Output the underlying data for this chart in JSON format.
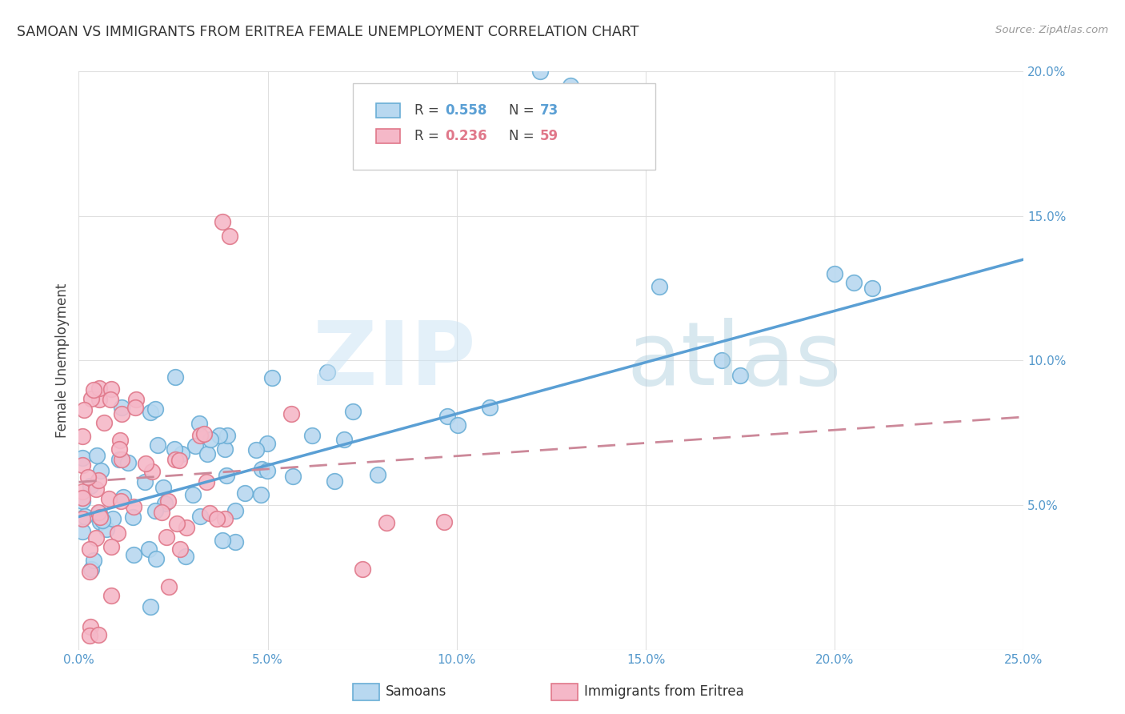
{
  "title": "SAMOAN VS IMMIGRANTS FROM ERITREA FEMALE UNEMPLOYMENT CORRELATION CHART",
  "source": "Source: ZipAtlas.com",
  "ylabel": "Female Unemployment",
  "x_min": 0.0,
  "x_max": 0.25,
  "y_min": 0.0,
  "y_max": 0.2,
  "x_ticks": [
    0.0,
    0.05,
    0.1,
    0.15,
    0.2,
    0.25
  ],
  "y_ticks": [
    0.0,
    0.05,
    0.1,
    0.15,
    0.2
  ],
  "color_samoan_fill": "#b8d8f0",
  "color_samoan_edge": "#6aaed6",
  "color_eritrea_fill": "#f5b8c8",
  "color_eritrea_edge": "#e0788a",
  "color_samoan_line": "#5a9fd4",
  "color_eritrea_line": "#cc8899",
  "watermark_zip_color": "#cce4f5",
  "watermark_atlas_color": "#aaccdd",
  "background_color": "#ffffff",
  "grid_color": "#dddddd",
  "tick_color": "#5599cc",
  "title_color": "#333333",
  "ylabel_color": "#444444",
  "source_color": "#999999",
  "legend_r_samoan": "0.558",
  "legend_n_samoan": "73",
  "legend_r_eritrea": "0.236",
  "legend_n_eritrea": "59",
  "samoan_intercept": 0.046,
  "samoan_slope": 0.356,
  "eritrea_intercept": 0.058,
  "eritrea_slope": 0.09
}
